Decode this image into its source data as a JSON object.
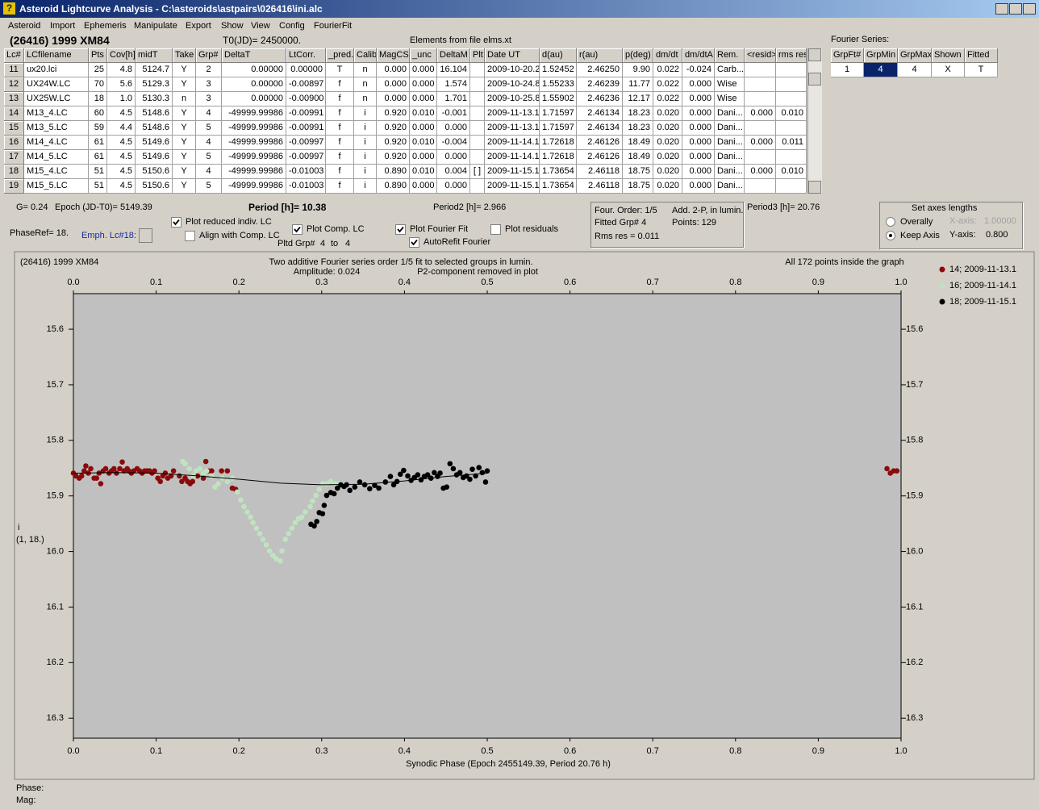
{
  "window": {
    "title": "Asteroid Lightcurve Analysis - C:\\asteroids\\astpairs\\026416\\ini.alc",
    "menu": [
      "Asteroid",
      "Import",
      "Ephemeris",
      "Manipulate",
      "Export",
      "Show",
      "View",
      "Config",
      "FourierFit"
    ]
  },
  "header": {
    "object": "(26416) 1999 XM84",
    "t0": "T0(JD)= 2450000.",
    "elements": "Elements from file elms.xt"
  },
  "table": {
    "columns": [
      "Lc#",
      "LCfilename",
      "Pts",
      "Cov[h]",
      "midT",
      "Take",
      "Grp#",
      "DeltaT",
      "LtCorr.",
      "_pred.",
      "Calib.",
      "MagCS",
      "_unc",
      "DeltaM",
      "Plt",
      "Date UT",
      "d(au)",
      "r(au)",
      "p(deg)",
      "dm/dt",
      "dm/dtA",
      "Rem.",
      "<resid>",
      "rms res"
    ],
    "rows": [
      [
        "11",
        "ux20.lci",
        "25",
        "4.8",
        "5124.7",
        "Y",
        "2",
        "0.00000",
        "0.00000",
        "T",
        "n",
        "0.000",
        "0.000",
        "16.104",
        null,
        "2009-10-20.2",
        "1.52452",
        "2.46250",
        "9.90",
        "0.022",
        "-0.024",
        "Carb...",
        null,
        null
      ],
      [
        "12",
        "UX24W.LC",
        "70",
        "5.6",
        "5129.3",
        "Y",
        "3",
        "0.00000",
        "-0.00897",
        "f",
        "n",
        "0.000",
        "0.000",
        "1.574",
        null,
        "2009-10-24.8",
        "1.55233",
        "2.46239",
        "11.77",
        "0.022",
        "0.000",
        "Wise",
        null,
        null
      ],
      [
        "13",
        "UX25W.LC",
        "18",
        "1.0",
        "5130.3",
        "n",
        "3",
        "0.00000",
        "-0.00900",
        "f",
        "n",
        "0.000",
        "0.000",
        "1.701",
        null,
        "2009-10-25.8",
        "1.55902",
        "2.46236",
        "12.17",
        "0.022",
        "0.000",
        "Wise",
        null,
        null
      ],
      [
        "14",
        "M13_4.LC",
        "60",
        "4.5",
        "5148.6",
        "Y",
        "4",
        "-49999.99986",
        "-0.00991",
        "f",
        "i",
        "0.920",
        "0.010",
        "-0.001",
        null,
        "2009-11-13.1",
        "1.71597",
        "2.46134",
        "18.23",
        "0.020",
        "0.000",
        "Dani...",
        "0.000",
        "0.010"
      ],
      [
        "15",
        "M13_5.LC",
        "59",
        "4.4",
        "5148.6",
        "Y",
        "5",
        "-49999.99986",
        "-0.00991",
        "f",
        "i",
        "0.920",
        "0.000",
        "0.000",
        null,
        "2009-11-13.1",
        "1.71597",
        "2.46134",
        "18.23",
        "0.020",
        "0.000",
        "Dani...",
        null,
        null
      ],
      [
        "16",
        "M14_4.LC",
        "61",
        "4.5",
        "5149.6",
        "Y",
        "4",
        "-49999.99986",
        "-0.00997",
        "f",
        "i",
        "0.920",
        "0.010",
        "-0.004",
        null,
        "2009-11-14.1",
        "1.72618",
        "2.46126",
        "18.49",
        "0.020",
        "0.000",
        "Dani...",
        "0.000",
        "0.011"
      ],
      [
        "17",
        "M14_5.LC",
        "61",
        "4.5",
        "5149.6",
        "Y",
        "5",
        "-49999.99986",
        "-0.00997",
        "f",
        "i",
        "0.920",
        "0.000",
        "0.000",
        null,
        "2009-11-14.1",
        "1.72618",
        "2.46126",
        "18.49",
        "0.020",
        "0.000",
        "Dani...",
        null,
        null
      ],
      [
        "18",
        "M15_4.LC",
        "51",
        "4.5",
        "5150.6",
        "Y",
        "4",
        "-49999.99986",
        "-0.01003",
        "f",
        "i",
        "0.890",
        "0.010",
        "0.004",
        "[ ]",
        "2009-11-15.1",
        "1.73654",
        "2.46118",
        "18.75",
        "0.020",
        "0.000",
        "Dani...",
        "0.000",
        "0.010"
      ],
      [
        "19",
        "M15_5.LC",
        "51",
        "4.5",
        "5150.6",
        "Y",
        "5",
        "-49999.99986",
        "-0.01003",
        "f",
        "i",
        "0.890",
        "0.000",
        "0.000",
        null,
        "2009-11-15.1",
        "1.73654",
        "2.46118",
        "18.75",
        "0.020",
        "0.000",
        "Dani...",
        null,
        null
      ]
    ]
  },
  "fourier_table": {
    "label": "Fourier Series:",
    "columns": [
      "GrpFt#",
      "GrpMin",
      "GrpMax",
      "Shown",
      "Fitted"
    ],
    "rows": [
      [
        "1",
        "4",
        "4",
        "X",
        "T"
      ]
    ]
  },
  "controls": {
    "g": "G= 0.24",
    "epoch": "Epoch (JD-T0)= 5149.39",
    "period": "Period [h]= 10.38",
    "period2": "Period2 [h]= 2.966",
    "period3": "Period3 [h]= 20.76",
    "phase_ref": "PhaseRef= 18.",
    "emph": "Emph. Lc#18:",
    "checkboxes": [
      {
        "label": "Plot reduced indiv. LC",
        "checked": true
      },
      {
        "label": "Align with Comp. LC",
        "checked": false
      },
      {
        "label": "Plot Comp. LC",
        "checked": true
      },
      {
        "label": "Plot Fourier Fit",
        "checked": true
      },
      {
        "label": "AutoRefit Fourier",
        "checked": true
      },
      {
        "label": "Plot residuals",
        "checked": false
      }
    ],
    "pltd_grp": {
      "label": "Pltd Grp#",
      "from": "4",
      "to_label": "to",
      "to": "4"
    },
    "info": {
      "order": "Four. Order:  1/5",
      "mode": "Add. 2-P, in lumin.",
      "fitted": "Fitted Grp# 4",
      "points": "Points: 129",
      "rms": "Rms res    = 0.011"
    },
    "axes": {
      "title": "Set axes lengths",
      "radios": [
        {
          "label": "Overally",
          "checked": false
        },
        {
          "label": "Keep Axis",
          "checked": true
        }
      ],
      "x_label": "X-axis:",
      "x_value": "1.00000",
      "y_label": "Y-axis:",
      "y_value": "0.800"
    }
  },
  "chart_data": {
    "type": "scatter",
    "title": "(26416) 1999 XM84",
    "annotations": [
      "Two additive Fourier series order 1/5 fit to selected groups in lumin.",
      "Amplitude: 0.024",
      "P2-component removed in plot",
      "All 172 points inside the graph"
    ],
    "xlabel": "Synodic Phase (Epoch 2455149.39, Period 20.76 h)",
    "ylabel": "i",
    "ylabel_note": "(1, 18.)",
    "xlim": [
      0,
      1
    ],
    "ylim": [
      15.536,
      16.336
    ],
    "y_inverted": true,
    "xticks": [
      {
        "value": 0,
        "label": "0.0"
      },
      0.1,
      0.2,
      0.3,
      0.4,
      0.5,
      0.6,
      0.7,
      0.8,
      0.9,
      {
        "value": 1,
        "label": "1.0"
      }
    ],
    "yticks": [
      15.6,
      15.7,
      15.8,
      15.9,
      {
        "value": 16,
        "label": "16.0"
      },
      16.1,
      16.2,
      16.3
    ],
    "series": [
      {
        "name": "14; 2009-11-13.1",
        "color": "#8b0a0a",
        "x": [
          0.0,
          0.003,
          0.007,
          0.01,
          0.013,
          0.015,
          0.018,
          0.021,
          0.025,
          0.028,
          0.031,
          0.033,
          0.036,
          0.039,
          0.043,
          0.046,
          0.049,
          0.052,
          0.056,
          0.059,
          0.061,
          0.065,
          0.067,
          0.07,
          0.073,
          0.077,
          0.08,
          0.083,
          0.086,
          0.089,
          0.092,
          0.095,
          0.098,
          0.102,
          0.105,
          0.108,
          0.111,
          0.114,
          0.118,
          0.121,
          0.128,
          0.131,
          0.135,
          0.138,
          0.141,
          0.144,
          0.15,
          0.157,
          0.16,
          0.163,
          0.167,
          0.179,
          0.186,
          0.192,
          0.196,
          0.983,
          0.987,
          0.991,
          0.995
        ],
        "values": [
          15.859,
          15.864,
          15.868,
          15.864,
          15.855,
          15.846,
          15.859,
          15.851,
          15.868,
          15.868,
          15.859,
          15.878,
          15.855,
          15.851,
          15.859,
          15.855,
          15.851,
          15.859,
          15.851,
          15.839,
          15.855,
          15.851,
          15.855,
          15.859,
          15.855,
          15.851,
          15.855,
          15.859,
          15.855,
          15.855,
          15.855,
          15.859,
          15.855,
          15.868,
          15.874,
          15.864,
          15.859,
          15.868,
          15.864,
          15.855,
          15.864,
          15.874,
          15.868,
          15.874,
          15.878,
          15.874,
          15.864,
          15.868,
          15.838,
          15.855,
          15.855,
          15.855,
          15.855,
          15.886,
          15.888,
          15.851,
          15.859,
          15.855,
          15.855
        ]
      },
      {
        "name": "16; 2009-11-14.1",
        "color": "#bfe3bf",
        "x": [
          0.132,
          0.135,
          0.14,
          0.145,
          0.148,
          0.153,
          0.157,
          0.161,
          0.167,
          0.171,
          0.175,
          0.18,
          0.186,
          0.192,
          0.198,
          0.202,
          0.206,
          0.21,
          0.214,
          0.217,
          0.221,
          0.225,
          0.229,
          0.233,
          0.237,
          0.241,
          0.245,
          0.25,
          0.252,
          0.256,
          0.26,
          0.264,
          0.268,
          0.272,
          0.276,
          0.28,
          0.286,
          0.289,
          0.293,
          0.297,
          0.301,
          0.306,
          0.311,
          0.317,
          0.321
        ],
        "values": [
          15.838,
          15.842,
          15.851,
          15.864,
          15.855,
          15.851,
          15.859,
          15.855,
          15.864,
          15.884,
          15.878,
          15.868,
          15.874,
          15.868,
          15.893,
          15.907,
          15.919,
          15.929,
          15.938,
          15.948,
          15.958,
          15.968,
          15.978,
          15.988,
          15.999,
          16.007,
          16.013,
          16.017,
          15.999,
          15.978,
          15.968,
          15.958,
          15.948,
          15.941,
          15.938,
          15.929,
          15.919,
          15.909,
          15.899,
          15.888,
          15.878,
          15.878,
          15.874,
          15.878,
          15.878
        ]
      },
      {
        "name": "18; 2009-11-15.1",
        "color": "#000000",
        "x": [
          0.287,
          0.291,
          0.294,
          0.297,
          0.301,
          0.303,
          0.306,
          0.311,
          0.315,
          0.319,
          0.323,
          0.327,
          0.33,
          0.334,
          0.34,
          0.346,
          0.352,
          0.358,
          0.364,
          0.369,
          0.377,
          0.383,
          0.387,
          0.391,
          0.395,
          0.399,
          0.404,
          0.408,
          0.412,
          0.416,
          0.42,
          0.424,
          0.428,
          0.432,
          0.436,
          0.44,
          0.443,
          0.447,
          0.451,
          0.455,
          0.459,
          0.463,
          0.467,
          0.471,
          0.475,
          0.479,
          0.482,
          0.486,
          0.49,
          0.494,
          0.498,
          0.5
        ],
        "values": [
          15.951,
          15.954,
          15.946,
          15.93,
          15.932,
          15.917,
          15.899,
          15.894,
          15.896,
          15.886,
          15.88,
          15.883,
          15.88,
          15.89,
          15.884,
          15.875,
          15.88,
          15.887,
          15.881,
          15.886,
          15.875,
          15.865,
          15.88,
          15.874,
          15.861,
          15.854,
          15.864,
          15.872,
          15.867,
          15.862,
          15.871,
          15.865,
          15.862,
          15.868,
          15.858,
          15.865,
          15.859,
          15.886,
          15.884,
          15.842,
          15.851,
          15.862,
          15.858,
          15.867,
          15.864,
          15.87,
          15.852,
          15.864,
          15.849,
          15.858,
          15.875,
          15.855
        ]
      }
    ],
    "fit": {
      "color": "#000000",
      "x": [
        0,
        0.05,
        0.1,
        0.15,
        0.2,
        0.25,
        0.3,
        0.35,
        0.4,
        0.45,
        0.5
      ],
      "values": [
        15.859,
        15.858,
        15.859,
        15.864,
        15.87,
        15.877,
        15.88,
        15.879,
        15.873,
        15.865,
        15.859
      ]
    }
  },
  "status": {
    "phase": "Phase:",
    "mag": "Mag:"
  }
}
